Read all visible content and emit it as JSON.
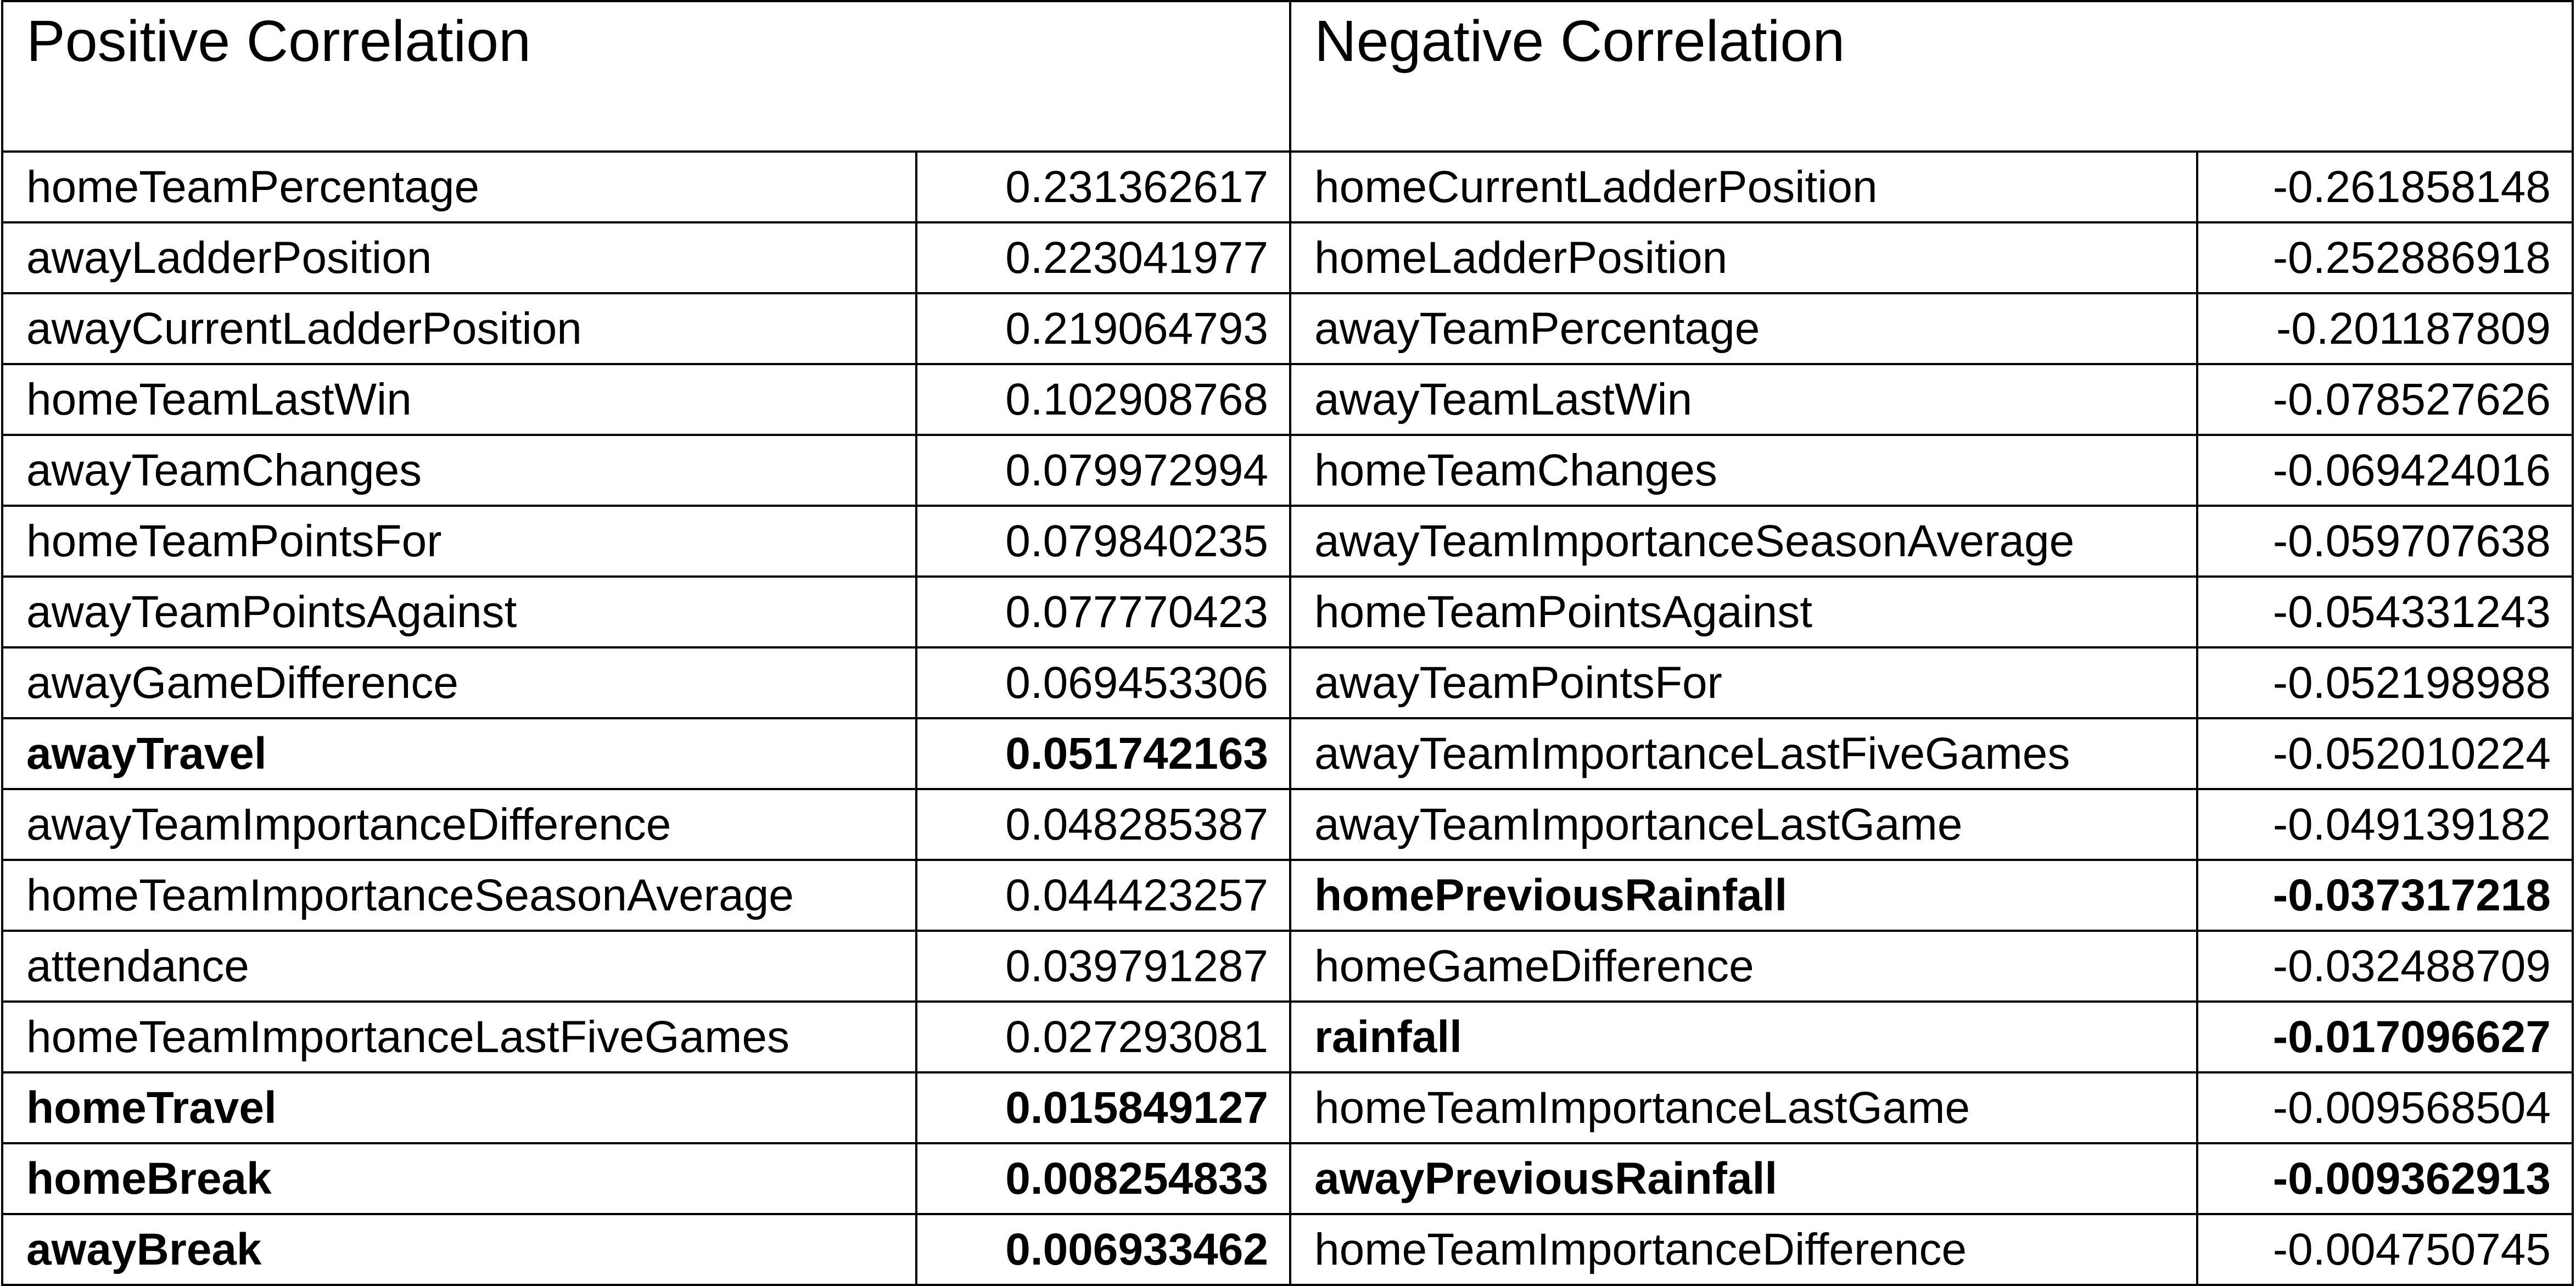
{
  "headers": {
    "positive": "Positive Correlation",
    "negative": "Negative Correlation"
  },
  "positive": [
    {
      "name": "homeTeamPercentage",
      "value": "0.231362617",
      "bold": false
    },
    {
      "name": "awayLadderPosition",
      "value": "0.223041977",
      "bold": false
    },
    {
      "name": "awayCurrentLadderPosition",
      "value": "0.219064793",
      "bold": false
    },
    {
      "name": "homeTeamLastWin",
      "value": "0.102908768",
      "bold": false
    },
    {
      "name": "awayTeamChanges",
      "value": "0.079972994",
      "bold": false
    },
    {
      "name": "homeTeamPointsFor",
      "value": "0.079840235",
      "bold": false
    },
    {
      "name": "awayTeamPointsAgainst",
      "value": "0.077770423",
      "bold": false
    },
    {
      "name": "awayGameDifference",
      "value": "0.069453306",
      "bold": false
    },
    {
      "name": "awayTravel",
      "value": "0.051742163",
      "bold": true
    },
    {
      "name": "awayTeamImportanceDifference",
      "value": "0.048285387",
      "bold": false
    },
    {
      "name": "homeTeamImportanceSeasonAverage",
      "value": "0.044423257",
      "bold": false
    },
    {
      "name": "attendance",
      "value": "0.039791287",
      "bold": false
    },
    {
      "name": "homeTeamImportanceLastFiveGames",
      "value": "0.027293081",
      "bold": false
    },
    {
      "name": "homeTravel",
      "value": "0.015849127",
      "bold": true
    },
    {
      "name": "homeBreak",
      "value": "0.008254833",
      "bold": true
    },
    {
      "name": "awayBreak",
      "value": "0.006933462",
      "bold": true
    }
  ],
  "negative": [
    {
      "name": "homeCurrentLadderPosition",
      "value": "-0.261858148",
      "bold": false
    },
    {
      "name": "homeLadderPosition",
      "value": "-0.252886918",
      "bold": false
    },
    {
      "name": "awayTeamPercentage",
      "value": "-0.201187809",
      "bold": false
    },
    {
      "name": "awayTeamLastWin",
      "value": "-0.078527626",
      "bold": false
    },
    {
      "name": "homeTeamChanges",
      "value": "-0.069424016",
      "bold": false
    },
    {
      "name": "awayTeamImportanceSeasonAverage",
      "value": "-0.059707638",
      "bold": false
    },
    {
      "name": "homeTeamPointsAgainst",
      "value": "-0.054331243",
      "bold": false
    },
    {
      "name": "awayTeamPointsFor",
      "value": "-0.052198988",
      "bold": false
    },
    {
      "name": "awayTeamImportanceLastFiveGames",
      "value": "-0.052010224",
      "bold": false
    },
    {
      "name": "awayTeamImportanceLastGame",
      "value": "-0.049139182",
      "bold": false
    },
    {
      "name": "homePreviousRainfall",
      "value": "-0.037317218",
      "bold": true
    },
    {
      "name": "homeGameDifference",
      "value": "-0.032488709",
      "bold": false
    },
    {
      "name": "rainfall",
      "value": "-0.017096627",
      "bold": true
    },
    {
      "name": "homeTeamImportanceLastGame",
      "value": "-0.009568504",
      "bold": false
    },
    {
      "name": "awayPreviousRainfall",
      "value": "-0.009362913",
      "bold": true
    },
    {
      "name": "homeTeamImportanceDifference",
      "value": "-0.004750745",
      "bold": false
    }
  ]
}
